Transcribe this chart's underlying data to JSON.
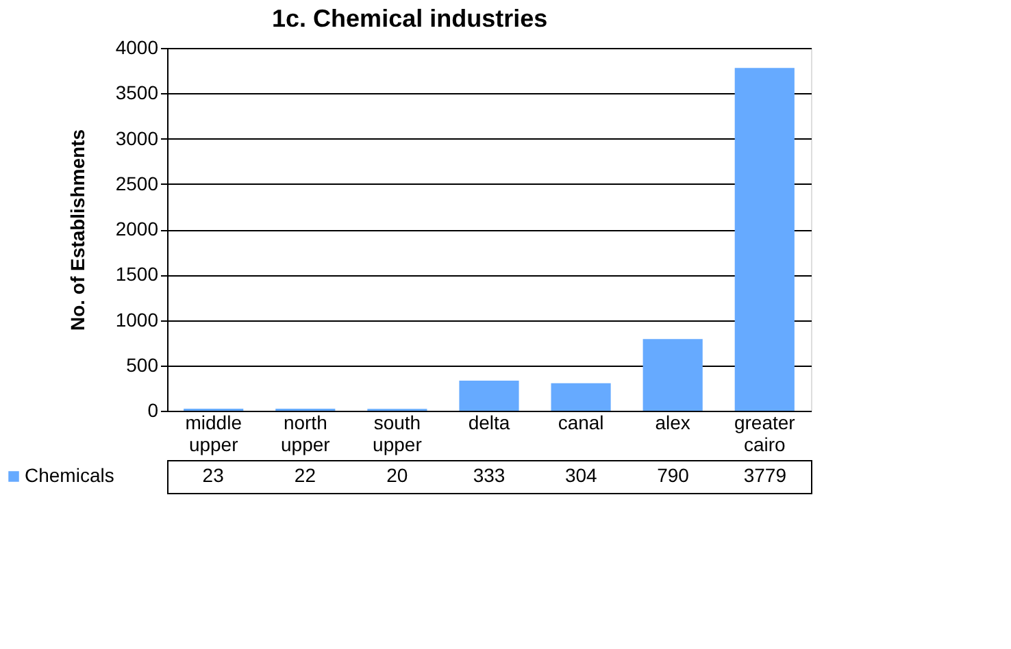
{
  "chart_data": {
    "type": "bar",
    "title": "1c. Chemical industries",
    "ylabel": "No. of Establishments",
    "categories": [
      "middle upper",
      "north upper",
      "south upper",
      "delta",
      "canal",
      "alex",
      "greater cairo"
    ],
    "series": [
      {
        "name": "Chemicals",
        "color": "#66aaff",
        "values": [
          23,
          22,
          20,
          333,
          304,
          790,
          3779
        ]
      }
    ],
    "ylim": [
      0,
      4000
    ],
    "yticks": [
      0,
      500,
      1000,
      1500,
      2000,
      2500,
      3000,
      3500,
      4000
    ],
    "grid": "y",
    "legend": "bottom",
    "data_labels": true
  }
}
